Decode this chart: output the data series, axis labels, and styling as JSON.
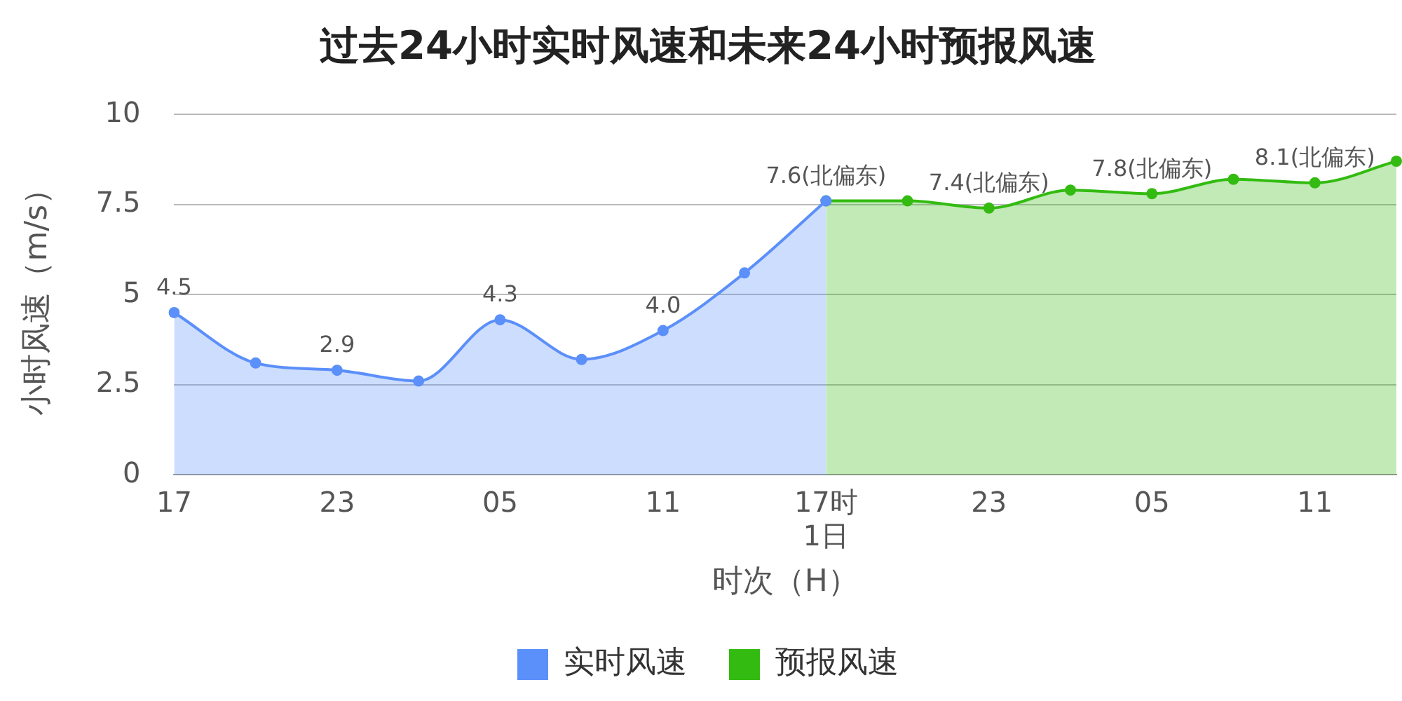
{
  "chart_data": {
    "type": "area",
    "title": "过去24小时实时风速和未来24小时预报风速",
    "xlabel": "时次（H）",
    "ylabel": "小时风速（m/s）",
    "categories": [
      "17",
      null,
      "23",
      null,
      "05",
      null,
      "11",
      null,
      "17时\n1日",
      null,
      "23",
      null,
      "05",
      null,
      "11",
      null
    ],
    "series": [
      {
        "name": "实时风速",
        "color": "#5b8ff9",
        "values": [
          4.5,
          3.1,
          2.9,
          2.6,
          4.3,
          3.2,
          4.0,
          5.6,
          7.6,
          null,
          null,
          null,
          null,
          null,
          null,
          null
        ],
        "value_labels": [
          "4.5",
          null,
          "2.9",
          null,
          "4.3",
          null,
          "4.0",
          null,
          null,
          null,
          null,
          null,
          null,
          null,
          null,
          null
        ]
      },
      {
        "name": "预报风速",
        "color": "#33bb11",
        "values": [
          null,
          null,
          null,
          null,
          null,
          null,
          null,
          null,
          7.6,
          7.6,
          7.4,
          7.9,
          7.8,
          8.2,
          8.1,
          8.7
        ],
        "value_labels": [
          null,
          null,
          null,
          null,
          null,
          null,
          null,
          null,
          "7.6(北偏东)",
          null,
          "7.4(北偏东)",
          null,
          "7.8(北偏东)",
          null,
          "8.1(北偏东)",
          null
        ]
      }
    ],
    "ylim": [
      0,
      10
    ],
    "yticks": [
      0,
      2.5,
      5,
      7.5,
      10
    ],
    "grid": "y",
    "legend": "bottom",
    "marker": "circle",
    "line_style": "solid"
  }
}
